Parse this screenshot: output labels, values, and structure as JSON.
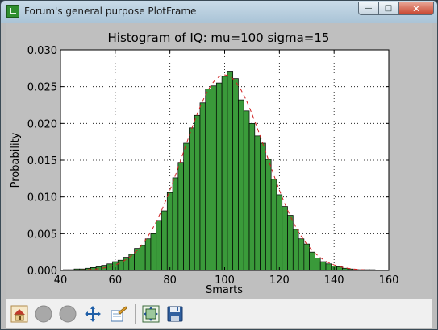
{
  "window": {
    "title": "Forum's general purpose PlotFrame",
    "min_glyph": "—",
    "max_glyph": "□",
    "close_glyph": "✕"
  },
  "toolbar": {
    "tools": [
      {
        "name": "home-tool",
        "icon": "home-icon"
      },
      {
        "name": "back-tool",
        "icon": "back-arrow-icon"
      },
      {
        "name": "forward-tool",
        "icon": "forward-arrow-icon"
      },
      {
        "name": "pan-tool",
        "icon": "pan-arrows-icon"
      },
      {
        "name": "zoom-tool",
        "icon": "zoom-icon"
      },
      {
        "name": "subplots-tool",
        "icon": "subplots-icon"
      },
      {
        "name": "save-tool",
        "icon": "save-icon"
      }
    ]
  },
  "chart_data": {
    "type": "bar",
    "title": "Histogram of IQ: mu=100 sigma=15",
    "xlabel": "Smarts",
    "ylabel": "Probability",
    "xlim": [
      40,
      160
    ],
    "ylim": [
      0,
      0.03
    ],
    "xticks": [
      40,
      60,
      80,
      100,
      120,
      140,
      160
    ],
    "yticks": [
      0.0,
      0.005,
      0.01,
      0.015,
      0.02,
      0.025,
      0.03
    ],
    "ytick_labels": [
      "0.000",
      "0.005",
      "0.010",
      "0.015",
      "0.020",
      "0.025",
      "0.030"
    ],
    "grid": true,
    "bar_color": "#3a9a3a",
    "curve_color": "#d02020",
    "mu": 100,
    "sigma": 15,
    "bins": [
      [
        42.0,
        0.0001
      ],
      [
        44.0,
        0.0001
      ],
      [
        46.0,
        0.0002
      ],
      [
        48.0,
        0.0002
      ],
      [
        50.0,
        0.0003
      ],
      [
        52.0,
        0.0004
      ],
      [
        54.0,
        0.0005
      ],
      [
        56.0,
        0.0007
      ],
      [
        58.0,
        0.0009
      ],
      [
        60.0,
        0.0012
      ],
      [
        62.0,
        0.0014
      ],
      [
        64.0,
        0.0018
      ],
      [
        66.0,
        0.0022
      ],
      [
        68.0,
        0.003
      ],
      [
        70.0,
        0.0034
      ],
      [
        72.0,
        0.0043
      ],
      [
        74.0,
        0.005
      ],
      [
        76.0,
        0.0068
      ],
      [
        78.0,
        0.0081
      ],
      [
        80.0,
        0.0106
      ],
      [
        82.0,
        0.0126
      ],
      [
        84.0,
        0.0147
      ],
      [
        86.0,
        0.0173
      ],
      [
        88.0,
        0.0194
      ],
      [
        90.0,
        0.0211
      ],
      [
        92.0,
        0.0228
      ],
      [
        94.0,
        0.0247
      ],
      [
        96.0,
        0.0251
      ],
      [
        98.0,
        0.0255
      ],
      [
        100.0,
        0.0264
      ],
      [
        102.0,
        0.0271
      ],
      [
        104.0,
        0.0261
      ],
      [
        106.0,
        0.0232
      ],
      [
        108.0,
        0.0217
      ],
      [
        110.0,
        0.02
      ],
      [
        112.0,
        0.0183
      ],
      [
        114.0,
        0.0173
      ],
      [
        116.0,
        0.0151
      ],
      [
        118.0,
        0.0124
      ],
      [
        120.0,
        0.0103
      ],
      [
        122.0,
        0.0087
      ],
      [
        124.0,
        0.0075
      ],
      [
        126.0,
        0.0056
      ],
      [
        128.0,
        0.0043
      ],
      [
        130.0,
        0.0036
      ],
      [
        132.0,
        0.0025
      ],
      [
        134.0,
        0.0017
      ],
      [
        136.0,
        0.0012
      ],
      [
        138.0,
        0.0009
      ],
      [
        140.0,
        0.0006
      ],
      [
        142.0,
        0.0005
      ],
      [
        144.0,
        0.0003
      ],
      [
        146.0,
        0.0002
      ],
      [
        148.0,
        0.0001
      ],
      [
        150.0,
        0.0001
      ],
      [
        152.0,
        0.0001
      ],
      [
        154.0,
        0.0001
      ]
    ]
  }
}
